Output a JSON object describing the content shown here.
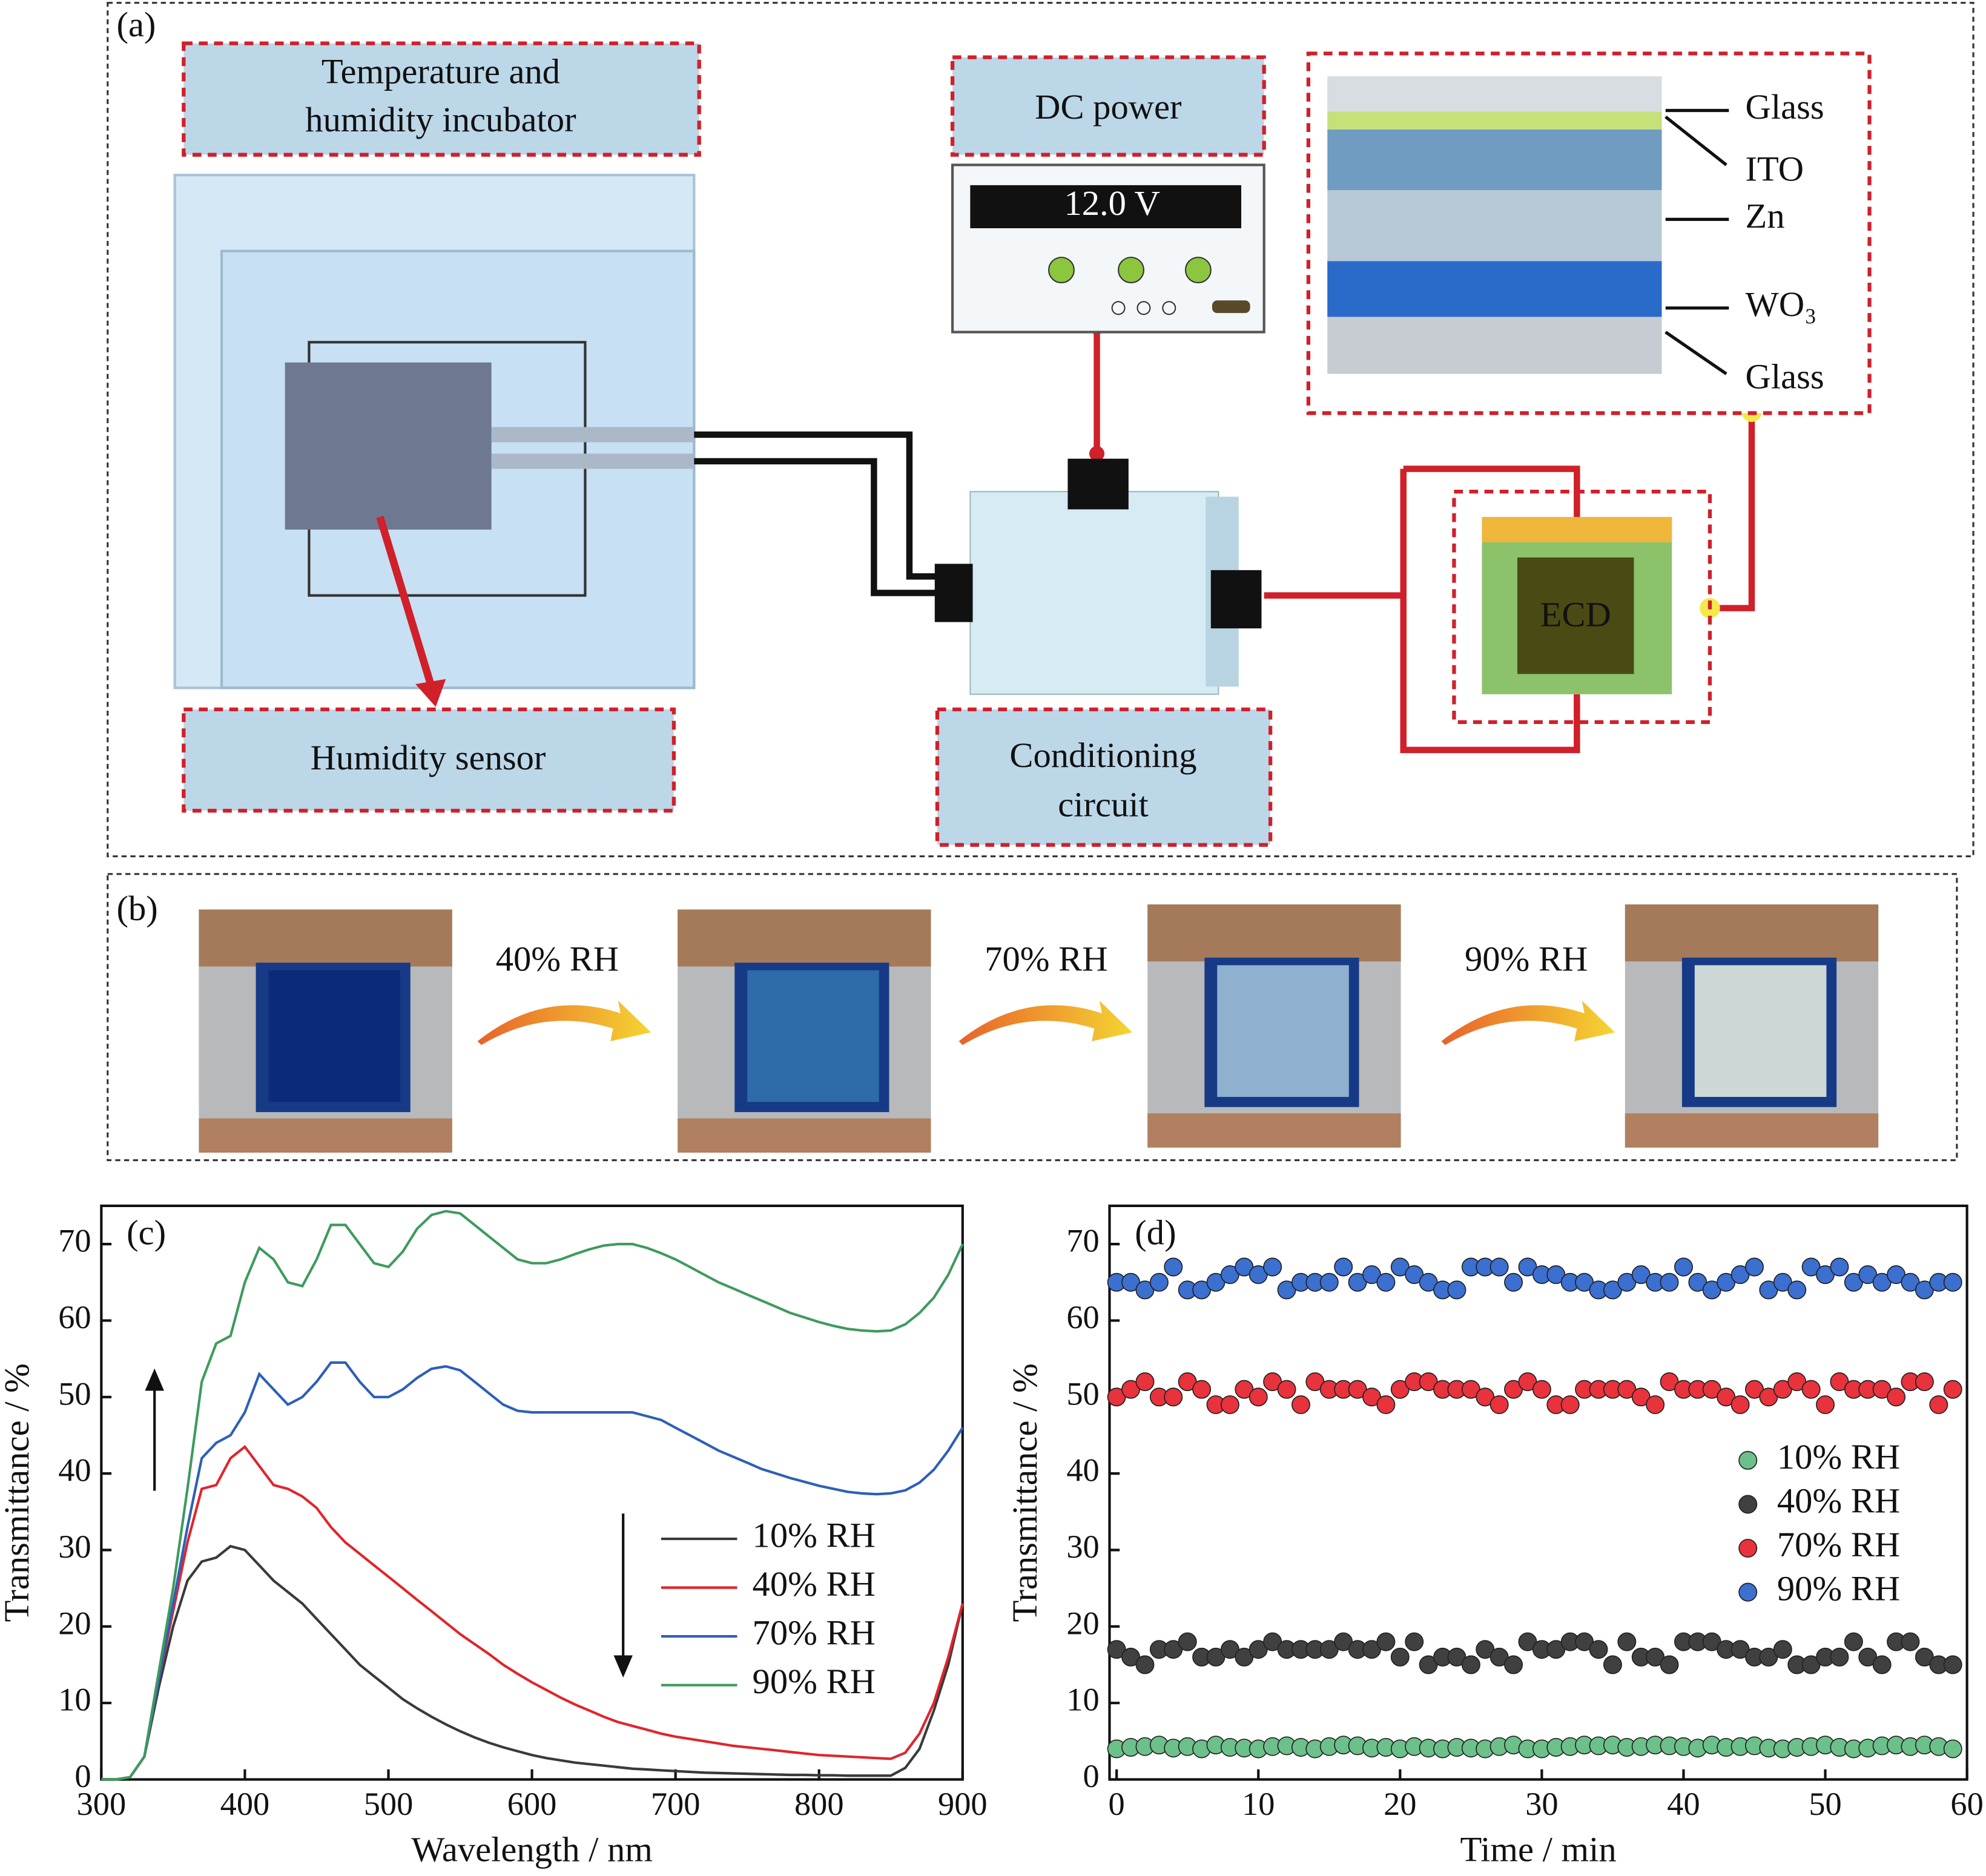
{
  "panel_a": {
    "label": "(a)",
    "incubator": [
      "Temperature and",
      "humidity incubator"
    ],
    "dc_power": "DC power",
    "display": "12.0 V",
    "layers": [
      "Glass",
      "ITO",
      "Zn",
      "WO₃",
      "Glass"
    ],
    "ecd": "ECD",
    "sensor": "Humidity sensor",
    "circuit": [
      "Conditioning",
      "circuit"
    ]
  },
  "panel_b": {
    "label": "(b)",
    "steps": [
      "40% RH",
      "70% RH",
      "90% RH"
    ]
  },
  "chart_data": [
    {
      "type": "line",
      "label": "(c)",
      "xlabel": "Wavelength / nm",
      "ylabel": "Transmittance / %",
      "x": [
        300,
        310,
        320,
        330,
        340,
        350,
        360,
        370,
        380,
        390,
        400,
        410,
        420,
        430,
        440,
        450,
        460,
        470,
        480,
        490,
        500,
        510,
        520,
        530,
        540,
        550,
        560,
        570,
        580,
        590,
        600,
        610,
        620,
        630,
        640,
        650,
        660,
        670,
        680,
        690,
        700,
        710,
        720,
        730,
        740,
        750,
        760,
        770,
        780,
        790,
        800,
        810,
        820,
        830,
        840,
        850,
        860,
        870,
        880,
        890,
        900
      ],
      "series": [
        {
          "name": "10% RH",
          "color": "#3a3a3a",
          "values": [
            0,
            0,
            0.3,
            3,
            12,
            20,
            26,
            28.5,
            29,
            30.5,
            30,
            28,
            26,
            24.5,
            23,
            21,
            19,
            17,
            15,
            13.5,
            12,
            10.5,
            9.3,
            8.2,
            7.2,
            6.3,
            5.5,
            4.8,
            4.2,
            3.7,
            3.2,
            2.8,
            2.5,
            2.2,
            2,
            1.8,
            1.6,
            1.4,
            1.3,
            1.2,
            1.1,
            1,
            0.9,
            0.85,
            0.8,
            0.75,
            0.7,
            0.65,
            0.6,
            0.6,
            0.55,
            0.55,
            0.5,
            0.5,
            0.5,
            0.5,
            1.5,
            4,
            9,
            15,
            23
          ]
        },
        {
          "name": "40% RH",
          "color": "#e0252b",
          "values": [
            0,
            0,
            0.3,
            3,
            13,
            22,
            31,
            38,
            38.5,
            42,
            43.5,
            41,
            38.5,
            38,
            37,
            35.5,
            33,
            31,
            29.5,
            28,
            26.5,
            25,
            23.5,
            22,
            20.5,
            19,
            17.7,
            16.4,
            15,
            13.8,
            12.7,
            11.7,
            10.7,
            9.8,
            9,
            8.2,
            7.5,
            7,
            6.5,
            6,
            5.6,
            5.3,
            5,
            4.7,
            4.4,
            4.2,
            4,
            3.8,
            3.6,
            3.4,
            3.2,
            3.1,
            3,
            2.9,
            2.8,
            2.7,
            3.5,
            6,
            10,
            16,
            23
          ]
        },
        {
          "name": "70% RH",
          "color": "#2e5fb8",
          "values": [
            0,
            0,
            0.3,
            3,
            13,
            23,
            33,
            42,
            44,
            45,
            48,
            53,
            51,
            49,
            50,
            52,
            54.5,
            54.5,
            52,
            50,
            50,
            51,
            52.5,
            53.7,
            54,
            53.5,
            52,
            50.5,
            49,
            48.2,
            48,
            48,
            48,
            48,
            48,
            48,
            48,
            48,
            47.5,
            47,
            46,
            45,
            44,
            43,
            42.2,
            41.4,
            40.6,
            40,
            39.4,
            38.9,
            38.4,
            38,
            37.6,
            37.4,
            37.3,
            37.4,
            37.8,
            38.8,
            40.5,
            43,
            46
          ]
        },
        {
          "name": "90% RH",
          "color": "#3e9a5e",
          "values": [
            0,
            0,
            0.3,
            3,
            14,
            25,
            38,
            52,
            57,
            58,
            65,
            69.5,
            68,
            65,
            64.5,
            68,
            72.5,
            72.5,
            70,
            67.5,
            67,
            69,
            72,
            73.8,
            74.3,
            74,
            72.5,
            71,
            69.5,
            68,
            67.5,
            67.5,
            68,
            68.7,
            69.3,
            69.8,
            70,
            70,
            69.5,
            68.8,
            68,
            67,
            66,
            65,
            64.2,
            63.4,
            62.6,
            61.8,
            61,
            60.4,
            59.8,
            59.3,
            58.9,
            58.7,
            58.6,
            58.7,
            59.5,
            61,
            63,
            66,
            70
          ]
        }
      ],
      "xlim": [
        300,
        900
      ],
      "ylim": [
        0,
        75
      ],
      "xticks": [
        300,
        400,
        500,
        600,
        700,
        800,
        900
      ],
      "yticks": [
        0,
        10,
        20,
        30,
        40,
        50,
        60,
        70
      ]
    },
    {
      "type": "scatter",
      "label": "(d)",
      "xlabel": "Time / min",
      "ylabel": "Transmittance / %",
      "x": [
        0,
        1,
        2,
        3,
        4,
        5,
        6,
        7,
        8,
        9,
        10,
        11,
        12,
        13,
        14,
        15,
        16,
        17,
        18,
        19,
        20,
        21,
        22,
        23,
        24,
        25,
        26,
        27,
        28,
        29,
        30,
        31,
        32,
        33,
        34,
        35,
        36,
        37,
        38,
        39,
        40,
        41,
        42,
        43,
        44,
        45,
        46,
        47,
        48,
        49,
        50,
        51,
        52,
        53,
        54,
        55,
        56,
        57,
        58,
        59
      ],
      "series": [
        {
          "name": "10% RH",
          "color": "#6cc08a",
          "values": [
            4,
            4.2,
            4.3,
            4.5,
            4.1,
            4.3,
            4,
            4.5,
            4.2,
            4.1,
            4,
            4.3,
            4.4,
            4.2,
            4,
            4.3,
            4.5,
            4.4,
            4.1,
            4.2,
            4,
            4.3,
            4.1,
            4,
            4.2,
            4.1,
            4,
            4.3,
            4.5,
            4,
            4,
            4.2,
            4.3,
            4.5,
            4.4,
            4.5,
            4.2,
            4.3,
            4.5,
            4.4,
            4.3,
            4.1,
            4.5,
            4.2,
            4.3,
            4.4,
            4.1,
            4,
            4.2,
            4.3,
            4.5,
            4.2,
            4,
            4.1,
            4.4,
            4.5,
            4.3,
            4.5,
            4.3,
            4
          ]
        },
        {
          "name": "40% RH",
          "color": "#404040",
          "values": [
            17,
            16,
            15,
            17,
            17,
            18,
            16,
            16,
            17,
            16,
            17,
            18,
            17,
            17,
            17,
            17,
            18,
            17,
            17,
            18,
            16,
            18,
            15,
            16,
            16,
            15,
            17,
            16,
            15,
            18,
            17,
            17,
            18,
            18,
            17,
            15,
            18,
            16,
            16,
            15,
            18,
            18,
            18,
            17,
            17,
            16,
            16,
            17,
            15,
            15,
            16,
            16,
            18,
            16,
            15,
            18,
            18,
            16,
            15,
            15
          ]
        },
        {
          "name": "70% RH",
          "color": "#e8323c",
          "values": [
            50,
            51,
            52,
            50,
            50,
            52,
            51,
            49,
            49,
            51,
            50,
            52,
            51,
            49,
            52,
            51,
            51,
            51,
            50,
            49,
            51,
            52,
            52,
            51,
            51,
            51,
            50,
            49,
            51,
            52,
            51,
            49,
            49,
            51,
            51,
            51,
            51,
            50,
            49,
            52,
            51,
            51,
            51,
            50,
            49,
            51,
            50,
            51,
            52,
            51,
            49,
            52,
            51,
            51,
            51,
            50,
            52,
            52,
            49,
            51
          ]
        },
        {
          "name": "90% RH",
          "color": "#3b6fd0",
          "values": [
            65,
            65,
            64,
            65,
            67,
            64,
            64,
            65,
            66,
            67,
            66,
            67,
            64,
            65,
            65,
            65,
            67,
            65,
            66,
            65,
            67,
            66,
            65,
            64,
            64,
            67,
            67,
            67,
            65,
            67,
            66,
            66,
            65,
            65,
            64,
            64,
            65,
            66,
            65,
            65,
            67,
            65,
            64,
            65,
            66,
            67,
            64,
            65,
            64,
            67,
            66,
            67,
            65,
            66,
            65,
            66,
            65,
            64,
            65,
            65
          ]
        }
      ],
      "xlim": [
        -0.5,
        60
      ],
      "ylim": [
        0,
        75
      ],
      "xticks": [
        0,
        10,
        20,
        30,
        40,
        50,
        60
      ],
      "yticks": [
        0,
        10,
        20,
        30,
        40,
        50,
        60,
        70
      ]
    }
  ]
}
